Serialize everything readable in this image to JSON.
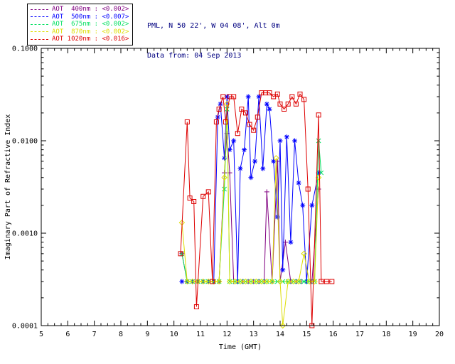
{
  "header": {
    "site_line": "PML, N 50 22', W 04 08', Alt 0m",
    "date_line": "Data from: 04 Sep 2013"
  },
  "legend": {
    "items": [
      {
        "label": "AOT  400nm",
        "value": "<0.002>",
        "color": "#800080"
      },
      {
        "label": "AOT  500nm",
        "value": "<0.007>",
        "color": "#0000ff"
      },
      {
        "label": "AOT  675nm",
        "value": "<0.002>",
        "color": "#00e060"
      },
      {
        "label": "AOT  870nm",
        "value": "<0.002>",
        "color": "#dddd00"
      },
      {
        "label": "AOT 1020nm",
        "value": "<0.016>",
        "color": "#dd0000"
      }
    ]
  },
  "chart_data": {
    "type": "line",
    "title": "",
    "xlabel": "Time (GMT)",
    "ylabel": "Imaginary Part of Refractive Index",
    "xlim": [
      5,
      20
    ],
    "ylim": [
      0.0001,
      0.1
    ],
    "yscale": "log",
    "grid": false,
    "legend_position": "top-left",
    "xticks": [
      5,
      6,
      7,
      8,
      9,
      10,
      11,
      12,
      13,
      14,
      15,
      16,
      17,
      18,
      19,
      20
    ],
    "yticks": [
      {
        "v": 0.0001,
        "label": "0.0001"
      },
      {
        "v": 0.001,
        "label": "0.0010"
      },
      {
        "v": 0.01,
        "label": "0.0100"
      },
      {
        "v": 0.1,
        "label": "0.1000"
      }
    ],
    "series": [
      {
        "name": "AOT 400nm",
        "mean": "<0.002>",
        "color": "#800080",
        "marker": "plus",
        "points": [
          [
            10.3,
            0.0006
          ],
          [
            10.5,
            0.0003
          ],
          [
            10.7,
            0.0003
          ],
          [
            10.9,
            0.0003
          ],
          [
            11.1,
            0.0003
          ],
          [
            11.3,
            0.0003
          ],
          [
            11.5,
            0.0003
          ],
          [
            11.7,
            0.0003
          ],
          [
            11.9,
            0.0045
          ],
          [
            12.0,
            0.012
          ],
          [
            12.1,
            0.0045
          ],
          [
            12.25,
            0.0003
          ],
          [
            12.4,
            0.0003
          ],
          [
            12.6,
            0.0003
          ],
          [
            12.8,
            0.0003
          ],
          [
            13.0,
            0.0003
          ],
          [
            13.2,
            0.0003
          ],
          [
            13.4,
            0.0003
          ],
          [
            13.5,
            0.0028
          ],
          [
            13.7,
            0.0003
          ],
          [
            13.9,
            0.006
          ],
          [
            14.0,
            0.0003
          ],
          [
            14.2,
            0.0008
          ],
          [
            14.4,
            0.0003
          ],
          [
            14.6,
            0.0003
          ],
          [
            14.8,
            0.0003
          ],
          [
            15.0,
            0.0003
          ],
          [
            15.2,
            0.0003
          ],
          [
            15.45,
            0.003
          ]
        ]
      },
      {
        "name": "AOT 500nm",
        "mean": "<0.007>",
        "color": "#0000ff",
        "marker": "asterisk",
        "points": [
          [
            10.3,
            0.0003
          ],
          [
            10.5,
            0.0003
          ],
          [
            10.7,
            0.0003
          ],
          [
            10.9,
            0.0003
          ],
          [
            11.1,
            0.0003
          ],
          [
            11.3,
            0.0003
          ],
          [
            11.5,
            0.0003
          ],
          [
            11.65,
            0.018
          ],
          [
            11.75,
            0.025
          ],
          [
            11.9,
            0.0065
          ],
          [
            12.0,
            0.03
          ],
          [
            12.1,
            0.008
          ],
          [
            12.25,
            0.01
          ],
          [
            12.4,
            0.0003
          ],
          [
            12.5,
            0.005
          ],
          [
            12.65,
            0.008
          ],
          [
            12.8,
            0.03
          ],
          [
            12.9,
            0.004
          ],
          [
            13.05,
            0.006
          ],
          [
            13.2,
            0.03
          ],
          [
            13.35,
            0.005
          ],
          [
            13.5,
            0.025
          ],
          [
            13.6,
            0.022
          ],
          [
            13.75,
            0.006
          ],
          [
            13.9,
            0.0015
          ],
          [
            14.0,
            0.01
          ],
          [
            14.1,
            0.0004
          ],
          [
            14.25,
            0.011
          ],
          [
            14.4,
            0.0008
          ],
          [
            14.55,
            0.01
          ],
          [
            14.7,
            0.0035
          ],
          [
            14.85,
            0.002
          ],
          [
            15.0,
            0.0003
          ],
          [
            15.2,
            0.002
          ],
          [
            15.45,
            0.0045
          ]
        ]
      },
      {
        "name": "AOT 675nm",
        "mean": "<0.002>",
        "color": "#00e060",
        "marker": "x",
        "points": [
          [
            10.3,
            0.0006
          ],
          [
            10.5,
            0.0003
          ],
          [
            10.7,
            0.0003
          ],
          [
            10.9,
            0.0003
          ],
          [
            11.1,
            0.0003
          ],
          [
            11.3,
            0.0003
          ],
          [
            11.5,
            0.0003
          ],
          [
            11.7,
            0.0003
          ],
          [
            11.9,
            0.003
          ],
          [
            12.0,
            0.022
          ],
          [
            12.1,
            0.0003
          ],
          [
            12.3,
            0.0003
          ],
          [
            12.5,
            0.0003
          ],
          [
            12.7,
            0.0003
          ],
          [
            12.9,
            0.0003
          ],
          [
            13.1,
            0.0003
          ],
          [
            13.3,
            0.0003
          ],
          [
            13.5,
            0.0003
          ],
          [
            13.7,
            0.0003
          ],
          [
            13.9,
            0.0003
          ],
          [
            14.1,
            0.0003
          ],
          [
            14.3,
            0.0003
          ],
          [
            14.5,
            0.0003
          ],
          [
            14.7,
            0.0003
          ],
          [
            14.9,
            0.0003
          ],
          [
            15.1,
            0.0003
          ],
          [
            15.3,
            0.0003
          ],
          [
            15.45,
            0.01
          ],
          [
            15.55,
            0.0045
          ]
        ]
      },
      {
        "name": "AOT 870nm",
        "mean": "<0.002>",
        "color": "#dddd00",
        "marker": "diamond",
        "points": [
          [
            10.3,
            0.0013
          ],
          [
            10.5,
            0.0003
          ],
          [
            10.7,
            0.0003
          ],
          [
            10.9,
            0.0003
          ],
          [
            11.1,
            0.0003
          ],
          [
            11.3,
            0.0003
          ],
          [
            11.5,
            0.0003
          ],
          [
            11.7,
            0.0003
          ],
          [
            11.9,
            0.004
          ],
          [
            12.0,
            0.025
          ],
          [
            12.1,
            0.0003
          ],
          [
            12.3,
            0.0003
          ],
          [
            12.5,
            0.0003
          ],
          [
            12.7,
            0.0003
          ],
          [
            12.9,
            0.0003
          ],
          [
            13.1,
            0.0003
          ],
          [
            13.3,
            0.0003
          ],
          [
            13.5,
            0.0003
          ],
          [
            13.7,
            0.0003
          ],
          [
            13.85,
            0.0065
          ],
          [
            14.0,
            0.0003
          ],
          [
            14.1,
            0.0001
          ],
          [
            14.3,
            0.0003
          ],
          [
            14.5,
            0.0003
          ],
          [
            14.7,
            0.0003
          ],
          [
            14.9,
            0.0006
          ],
          [
            15.1,
            0.0003
          ],
          [
            15.3,
            0.0003
          ],
          [
            15.45,
            0.004
          ]
        ]
      },
      {
        "name": "AOT 1020nm",
        "mean": "<0.016>",
        "color": "#dd0000",
        "marker": "square",
        "points": [
          [
            10.25,
            0.0006
          ],
          [
            10.5,
            0.016
          ],
          [
            10.6,
            0.0024
          ],
          [
            10.75,
            0.0022
          ],
          [
            10.85,
            0.00016
          ],
          [
            11.1,
            0.0025
          ],
          [
            11.3,
            0.0028
          ],
          [
            11.45,
            0.0003
          ],
          [
            11.6,
            0.016
          ],
          [
            11.7,
            0.022
          ],
          [
            11.85,
            0.03
          ],
          [
            11.95,
            0.016
          ],
          [
            12.1,
            0.03
          ],
          [
            12.25,
            0.03
          ],
          [
            12.4,
            0.012
          ],
          [
            12.55,
            0.022
          ],
          [
            12.7,
            0.02
          ],
          [
            12.85,
            0.015
          ],
          [
            13.0,
            0.013
          ],
          [
            13.15,
            0.018
          ],
          [
            13.3,
            0.033
          ],
          [
            13.45,
            0.033
          ],
          [
            13.6,
            0.033
          ],
          [
            13.75,
            0.03
          ],
          [
            13.9,
            0.032
          ],
          [
            14.0,
            0.025
          ],
          [
            14.15,
            0.022
          ],
          [
            14.3,
            0.025
          ],
          [
            14.45,
            0.03
          ],
          [
            14.6,
            0.025
          ],
          [
            14.75,
            0.032
          ],
          [
            14.9,
            0.028
          ],
          [
            15.05,
            0.003
          ],
          [
            15.2,
            0.0001
          ],
          [
            15.45,
            0.019
          ],
          [
            15.55,
            0.0003
          ],
          [
            15.75,
            0.0003
          ],
          [
            15.95,
            0.0003
          ]
        ]
      }
    ]
  }
}
